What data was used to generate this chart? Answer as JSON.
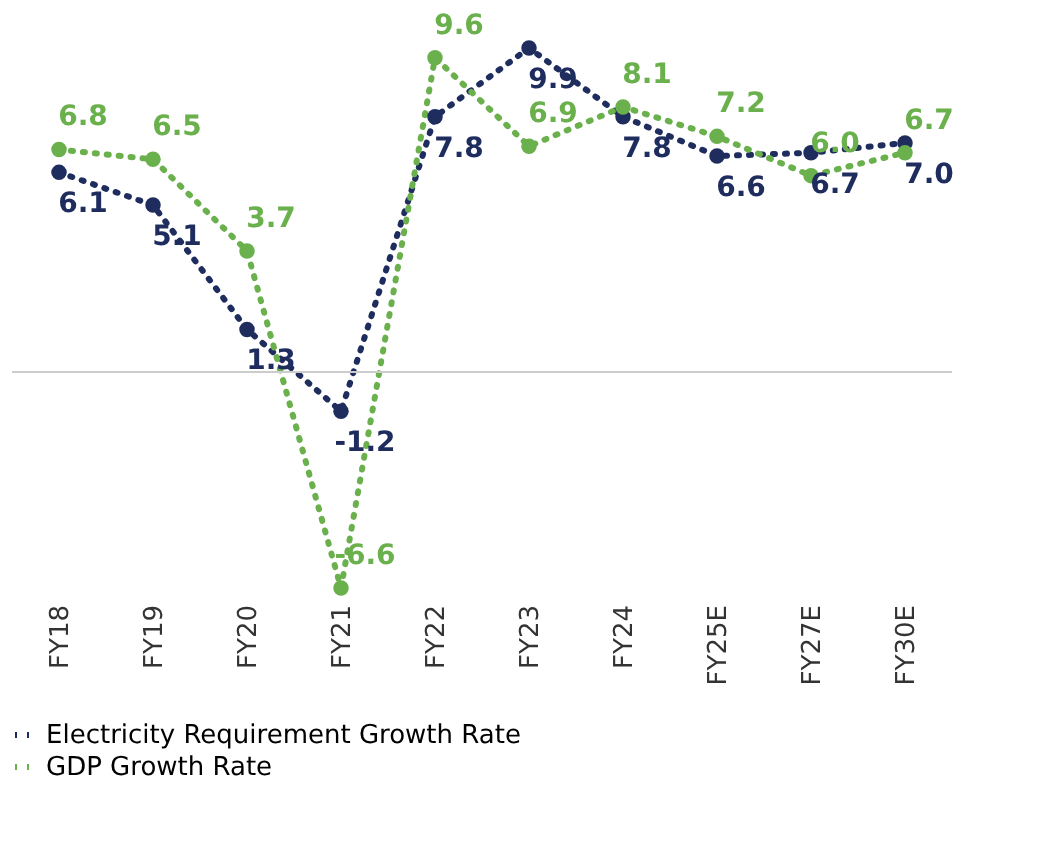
{
  "chart_data": {
    "type": "line",
    "categories": [
      "FY18",
      "FY19",
      "FY20",
      "FY21",
      "FY22",
      "FY23",
      "FY24",
      "FY25E",
      "FY27E",
      "FY30E"
    ],
    "series": [
      {
        "name": "Electricity Requirement Growth Rate",
        "color": "#1f2d5e",
        "values": [
          6.1,
          5.1,
          1.3,
          -1.2,
          7.8,
          9.9,
          7.8,
          6.6,
          6.7,
          7.0
        ],
        "value_labels": [
          "6.1",
          "5.1",
          "1.3",
          "-1.2",
          "7.8",
          "9.9",
          "7.8",
          "6.6",
          "6.7",
          "7.0"
        ]
      },
      {
        "name": "GDP Growth Rate",
        "color": "#6ab04c",
        "values": [
          6.8,
          6.5,
          3.7,
          -6.6,
          9.6,
          6.9,
          8.1,
          7.2,
          6.0,
          6.7
        ],
        "value_labels": [
          "6.8",
          "6.5",
          "3.7",
          "-6.6",
          "9.6",
          "6.9",
          "8.1",
          "7.2",
          "6.0",
          "6.7"
        ]
      }
    ],
    "tick_labels": "x",
    "grid": false,
    "legend": "bottom",
    "marker": "circle",
    "line_style": "dotted"
  }
}
